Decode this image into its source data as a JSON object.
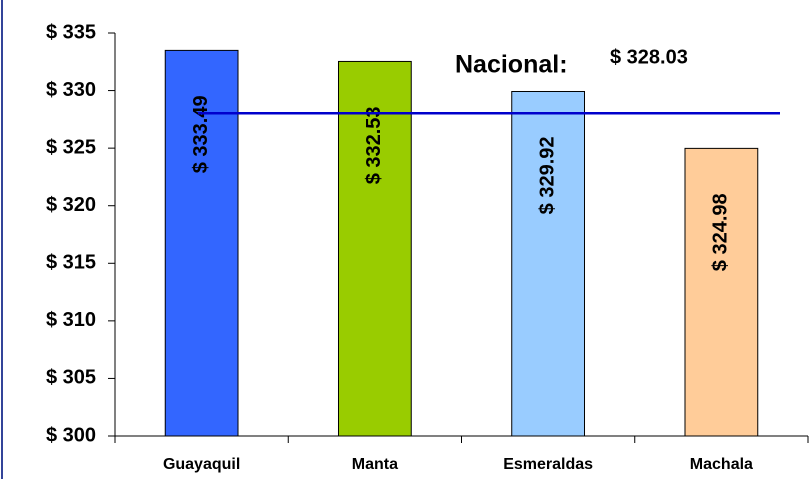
{
  "chart_data": {
    "type": "bar",
    "categories": [
      "Guayaquil",
      "Manta",
      "Esmeraldas",
      "Machala"
    ],
    "values": [
      333.49,
      332.53,
      329.92,
      324.98
    ],
    "value_labels": [
      "$ 333.49",
      "$ 332.53",
      "$ 329.92",
      "$ 324.98"
    ],
    "colors": [
      "#3366ff",
      "#99cc00",
      "#99ccff",
      "#ffcc99"
    ],
    "ylim": [
      300,
      335
    ],
    "yticks": [
      {
        "value": 300,
        "label": "$ 300"
      },
      {
        "value": 305,
        "label": "$ 305"
      },
      {
        "value": 310,
        "label": "$ 310"
      },
      {
        "value": 315,
        "label": "$ 315"
      },
      {
        "value": 320,
        "label": "$ 320"
      },
      {
        "value": 325,
        "label": "$ 325"
      },
      {
        "value": 330,
        "label": "$ 330"
      },
      {
        "value": 335,
        "label": "$ 335"
      }
    ],
    "reference": {
      "label": "Nacional:",
      "value": 328.03,
      "value_label": "$ 328.03",
      "color": "#0000cc"
    }
  }
}
